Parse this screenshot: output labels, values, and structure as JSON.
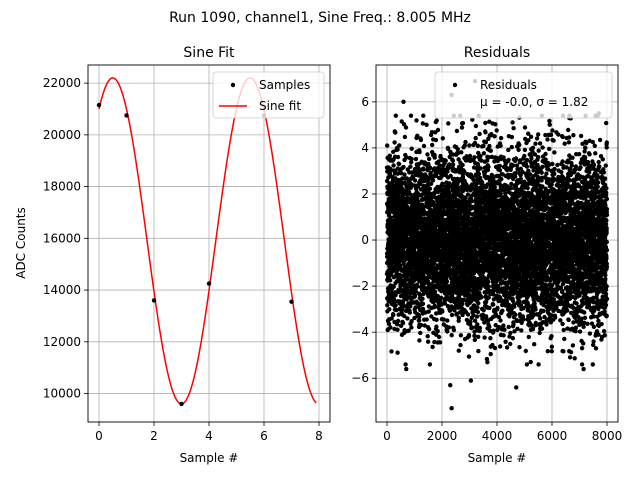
{
  "suptitle": "Run 1090, channel1, Sine Freq.: 8.005 MHz",
  "chart_data": [
    {
      "type": "line",
      "title": "Sine Fit",
      "xlabel": "Sample #",
      "ylabel": "ADC Counts",
      "xlim": [
        -0.4,
        8.4
      ],
      "ylim": [
        8900,
        22700
      ],
      "xticks": [
        0,
        2,
        4,
        6,
        8
      ],
      "yticks": [
        10000,
        12000,
        14000,
        16000,
        18000,
        20000,
        22000
      ],
      "grid": true,
      "legend": {
        "placement": "upper right",
        "entries": [
          "Samples",
          "Sine fit"
        ]
      },
      "series": [
        {
          "name": "Samples",
          "kind": "scatter",
          "color": "#000000",
          "points": [
            [
              0,
              21150
            ],
            [
              1,
              20750
            ],
            [
              2,
              13600
            ],
            [
              3,
              9600
            ],
            [
              4,
              14250
            ],
            [
              6,
              20750
            ],
            [
              7,
              13550
            ]
          ]
        },
        {
          "name": "Sine fit",
          "kind": "line",
          "color": "#ff0000",
          "model": {
            "amplitude": 6300,
            "offset": 15900,
            "period_samples": 4.995,
            "peak_at_sample": 0.5
          },
          "x_range": [
            0,
            7.9
          ]
        }
      ]
    },
    {
      "type": "scatter",
      "title": "Residuals",
      "xlabel": "Sample #",
      "xlim": [
        -400,
        8400
      ],
      "ylim": [
        -7.9,
        7.6
      ],
      "xticks": [
        0,
        2000,
        4000,
        6000,
        8000
      ],
      "yticks": [
        -6,
        -4,
        -2,
        0,
        2,
        4,
        6
      ],
      "grid": true,
      "legend": {
        "placement": "upper right",
        "entries": [
          "Residuals",
          "μ = -0.0, σ = 1.82"
        ]
      },
      "series": [
        {
          "name": "Residuals",
          "color": "#000000",
          "n_points": 8000,
          "mean": -0.0,
          "sigma": 1.82,
          "x_range": [
            0,
            8000
          ],
          "notable_points": [
            [
              600,
              6.0
            ],
            [
              2350,
              6.3
            ],
            [
              3200,
              6.9
            ],
            [
              2350,
              -7.3
            ],
            [
              2300,
              -6.3
            ],
            [
              3050,
              -6.1
            ],
            [
              4700,
              -6.4
            ],
            [
              7150,
              -5.6
            ],
            [
              700,
              -5.6
            ],
            [
              7700,
              5.5
            ]
          ]
        }
      ]
    }
  ]
}
